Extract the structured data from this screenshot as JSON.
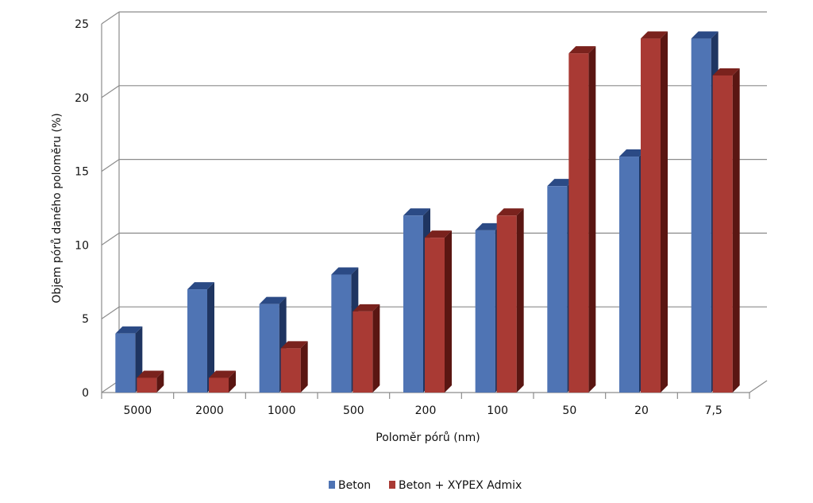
{
  "chart_data": {
    "type": "bar",
    "categories": [
      "5000",
      "2000",
      "1000",
      "500",
      "200",
      "100",
      "50",
      "20",
      "7,5"
    ],
    "series": [
      {
        "name": "Beton",
        "values": [
          4,
          7,
          6,
          8,
          12,
          11,
          14,
          16,
          24
        ]
      },
      {
        "name": "Beton + XYPEX Admix",
        "values": [
          1,
          1,
          3,
          5.5,
          10.5,
          12,
          23,
          24,
          21.5
        ]
      }
    ],
    "title": "",
    "xlabel": "Poloměr pórů (nm)",
    "ylabel": "Objem pórů daného poloměru (%)",
    "ylim": [
      0,
      25
    ],
    "yticks": [
      "0",
      "5",
      "10",
      "15",
      "20",
      "25"
    ],
    "grid": true,
    "legend_position": "bottom",
    "colors": {
      "Beton": {
        "front": "#4f74b4",
        "side": "#1f3561",
        "top": "#2b4a85"
      },
      "Beton + XYPEX Admix": {
        "front": "#a93a34",
        "side": "#5a1612",
        "top": "#7a221d"
      }
    }
  }
}
